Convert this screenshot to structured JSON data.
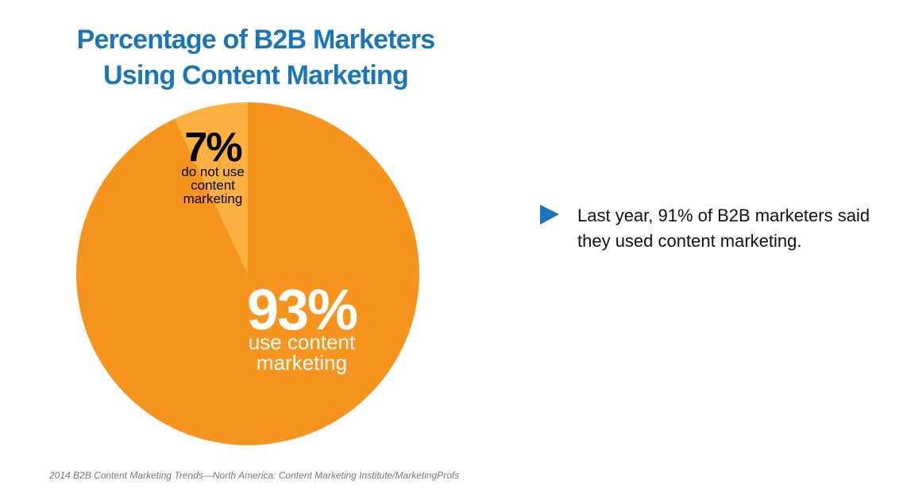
{
  "chart_data": {
    "type": "pie",
    "title": "Percentage of B2B Marketers Using Content Marketing",
    "categories": [
      "use content marketing",
      "do not use content marketing"
    ],
    "values": [
      93,
      7
    ],
    "value_labels": [
      "93%",
      "7%"
    ],
    "colors": [
      "#f7941d",
      "#fbb040"
    ],
    "annotation": "Last year, 91% of B2B marketers said they used content marketing.",
    "source": "2014 B2B Content Marketing Trends—North America: Content Marketing Institute/MarketingProfs"
  }
}
